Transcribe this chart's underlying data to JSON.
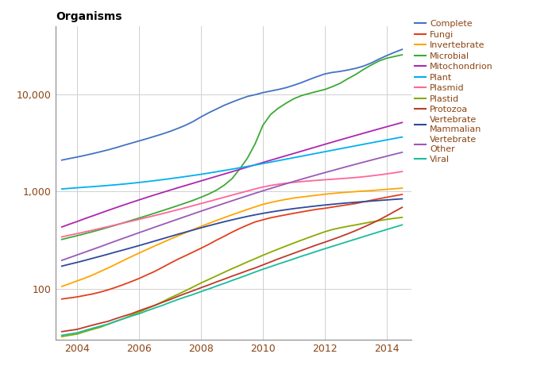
{
  "title": "Organisms",
  "title_fontsize": 10,
  "title_fontweight": "bold",
  "background_color": "#ffffff",
  "grid_color": "#d0d0d0",
  "years": [
    2003.5,
    2003.75,
    2004.0,
    2004.25,
    2004.5,
    2004.75,
    2005.0,
    2005.25,
    2005.5,
    2005.75,
    2006.0,
    2006.25,
    2006.5,
    2006.75,
    2007.0,
    2007.25,
    2007.5,
    2007.75,
    2008.0,
    2008.25,
    2008.5,
    2008.75,
    2009.0,
    2009.25,
    2009.5,
    2009.75,
    2010.0,
    2010.25,
    2010.5,
    2010.75,
    2011.0,
    2011.25,
    2011.5,
    2011.75,
    2012.0,
    2012.25,
    2012.5,
    2012.75,
    2013.0,
    2013.25,
    2013.5,
    2013.75,
    2014.0,
    2014.25,
    2014.5
  ],
  "series": {
    "Complete": {
      "color": "#4472C4",
      "values": [
        2100,
        2180,
        2260,
        2350,
        2450,
        2560,
        2680,
        2820,
        2980,
        3140,
        3310,
        3490,
        3690,
        3900,
        4150,
        4450,
        4800,
        5250,
        5850,
        6450,
        7050,
        7700,
        8300,
        8900,
        9500,
        9900,
        10400,
        10800,
        11200,
        11700,
        12400,
        13200,
        14200,
        15200,
        16200,
        16800,
        17200,
        17800,
        18500,
        19500,
        21000,
        23000,
        25000,
        27000,
        29000
      ]
    },
    "Fungi": {
      "color": "#E2401C",
      "values": [
        78,
        80,
        82,
        85,
        88,
        92,
        97,
        103,
        110,
        118,
        127,
        138,
        150,
        165,
        182,
        200,
        218,
        238,
        260,
        285,
        315,
        345,
        380,
        415,
        450,
        485,
        510,
        535,
        555,
        575,
        595,
        615,
        635,
        655,
        670,
        690,
        710,
        730,
        750,
        780,
        810,
        840,
        870,
        900,
        930
      ]
    },
    "Invertebrate": {
      "color": "#FFA500",
      "values": [
        105,
        112,
        120,
        128,
        138,
        150,
        163,
        178,
        195,
        213,
        232,
        252,
        274,
        297,
        322,
        348,
        376,
        405,
        436,
        468,
        502,
        537,
        574,
        612,
        652,
        693,
        735,
        768,
        800,
        828,
        855,
        875,
        895,
        915,
        935,
        952,
        968,
        982,
        995,
        1008,
        1020,
        1035,
        1050,
        1065,
        1080
      ]
    },
    "Microbial": {
      "color": "#3DAA35",
      "values": [
        320,
        335,
        350,
        367,
        385,
        405,
        427,
        450,
        476,
        503,
        532,
        563,
        597,
        633,
        672,
        714,
        760,
        810,
        870,
        940,
        1030,
        1160,
        1350,
        1700,
        2200,
        3100,
        4800,
        6200,
        7200,
        8100,
        9000,
        9700,
        10200,
        10700,
        11200,
        12000,
        13000,
        14500,
        16000,
        18000,
        20000,
        22000,
        23500,
        24500,
        25500
      ]
    },
    "Mitochondrion": {
      "color": "#AE27AE",
      "values": [
        430,
        460,
        490,
        525,
        560,
        598,
        638,
        680,
        724,
        770,
        818,
        868,
        920,
        974,
        1030,
        1090,
        1150,
        1215,
        1283,
        1355,
        1430,
        1510,
        1595,
        1685,
        1780,
        1880,
        1985,
        2095,
        2210,
        2332,
        2460,
        2596,
        2740,
        2892,
        3052,
        3220,
        3395,
        3578,
        3770,
        3970,
        4180,
        4400,
        4630,
        4870,
        5120
      ]
    },
    "Plant": {
      "color": "#00B0F0",
      "values": [
        1060,
        1075,
        1090,
        1105,
        1120,
        1135,
        1152,
        1170,
        1190,
        1212,
        1236,
        1262,
        1290,
        1320,
        1352,
        1386,
        1422,
        1460,
        1500,
        1545,
        1592,
        1642,
        1695,
        1750,
        1808,
        1870,
        1935,
        2003,
        2074,
        2148,
        2225,
        2305,
        2388,
        2474,
        2563,
        2655,
        2750,
        2848,
        2950,
        3055,
        3163,
        3275,
        3390,
        3508,
        3630
      ]
    },
    "Plasmid": {
      "color": "#FF6699",
      "values": [
        340,
        354,
        368,
        383,
        399,
        416,
        434,
        453,
        473,
        494,
        516,
        539,
        564,
        590,
        618,
        648,
        680,
        714,
        750,
        788,
        828,
        870,
        915,
        962,
        1010,
        1060,
        1110,
        1150,
        1185,
        1215,
        1240,
        1262,
        1282,
        1300,
        1318,
        1335,
        1352,
        1370,
        1390,
        1415,
        1445,
        1478,
        1515,
        1555,
        1600
      ]
    },
    "Plastid": {
      "color": "#89AB00",
      "values": [
        32,
        33,
        34,
        36,
        38,
        40,
        43,
        46,
        49,
        53,
        57,
        62,
        67,
        73,
        80,
        87,
        95,
        104,
        114,
        124,
        135,
        147,
        160,
        173,
        188,
        203,
        220,
        237,
        255,
        274,
        294,
        315,
        337,
        360,
        384,
        405,
        422,
        437,
        452,
        468,
        484,
        500,
        515,
        528,
        540
      ]
    },
    "Protozoa": {
      "color": "#C0392B",
      "values": [
        36,
        37,
        38,
        40,
        42,
        44,
        46,
        49,
        52,
        55,
        59,
        63,
        67,
        72,
        77,
        83,
        89,
        95,
        102,
        109,
        117,
        125,
        134,
        143,
        153,
        163,
        175,
        188,
        202,
        216,
        231,
        247,
        264,
        282,
        300,
        320,
        342,
        367,
        395,
        428,
        465,
        508,
        560,
        620,
        685
      ]
    },
    "Vertebrate Mammalian": {
      "color": "#2E4A9B",
      "values": [
        170,
        178,
        186,
        195,
        205,
        215,
        226,
        238,
        250,
        263,
        277,
        292,
        308,
        325,
        343,
        362,
        381,
        401,
        422,
        443,
        465,
        487,
        509,
        531,
        553,
        574,
        594,
        613,
        631,
        648,
        665,
        680,
        695,
        710,
        724,
        737,
        750,
        762,
        773,
        784,
        795,
        806,
        817,
        828,
        838
      ]
    },
    "Vertebrate Other": {
      "color": "#9B59B6",
      "values": [
        195,
        208,
        222,
        237,
        253,
        270,
        289,
        309,
        330,
        352,
        376,
        401,
        428,
        456,
        486,
        518,
        552,
        588,
        626,
        666,
        708,
        753,
        800,
        850,
        902,
        957,
        1014,
        1073,
        1135,
        1199,
        1266,
        1336,
        1408,
        1483,
        1561,
        1642,
        1726,
        1814,
        1905,
        2000,
        2098,
        2200,
        2305,
        2414,
        2526
      ]
    },
    "Viral": {
      "color": "#1ABC9C",
      "values": [
        33,
        34,
        35,
        37,
        39,
        41,
        43,
        46,
        49,
        52,
        55,
        59,
        63,
        67,
        72,
        77,
        82,
        87,
        93,
        99,
        106,
        113,
        121,
        129,
        138,
        148,
        158,
        168,
        179,
        190,
        202,
        215,
        228,
        242,
        257,
        272,
        288,
        305,
        323,
        342,
        362,
        383,
        405,
        428,
        452
      ]
    }
  },
  "xlim": [
    2003.3,
    2014.8
  ],
  "ylim": [
    30,
    50000
  ],
  "xticks": [
    2004,
    2006,
    2008,
    2010,
    2012,
    2014
  ],
  "yticks": [
    100,
    1000,
    10000
  ],
  "ytick_labels": [
    "100",
    "1,000",
    "10,000"
  ],
  "legend_entries": [
    [
      "Complete",
      "#4472C4"
    ],
    [
      "Fungi",
      "#E2401C"
    ],
    [
      "Invertebrate",
      "#FFA500"
    ],
    [
      "Microbial",
      "#3DAA35"
    ],
    [
      "Mitochondrion",
      "#AE27AE"
    ],
    [
      "Plant",
      "#00B0F0"
    ],
    [
      "Plasmid",
      "#FF6699"
    ],
    [
      "Plastid",
      "#89AB00"
    ],
    [
      "Protozoa",
      "#C0392B"
    ],
    [
      "Vertebrate\nMammalian",
      "#2E4A9B"
    ],
    [
      "Vertebrate\nOther",
      "#9B59B6"
    ],
    [
      "Viral",
      "#1ABC9C"
    ]
  ]
}
